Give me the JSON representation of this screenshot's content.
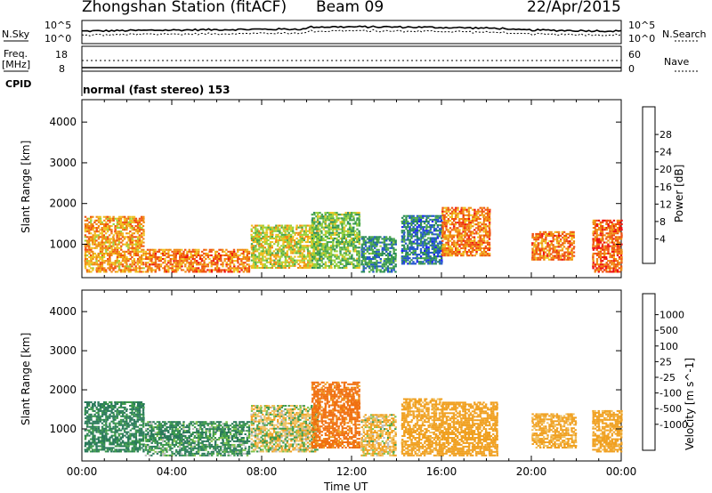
{
  "header": {
    "station": "Zhongshan Station (fitACF)",
    "beam": "Beam 09",
    "date": "22/Apr/2015"
  },
  "top_panel": {
    "left_label": "N.Sky",
    "left_ticks": [
      "10^5",
      "10^0"
    ],
    "right_ticks": [
      "10^5",
      "10^0"
    ],
    "right_label": "N.Search"
  },
  "freq_panel": {
    "left_label_1": "Freq.",
    "left_label_2": "[MHz]",
    "left_ticks": [
      "18",
      "8"
    ],
    "right_ticks": [
      "60",
      "0"
    ],
    "right_label": "Nave"
  },
  "cpid_panel": {
    "label": "CPID",
    "mode": "normal (fast stereo) 153"
  },
  "chart_data": [
    {
      "type": "heatmap",
      "quantity": "Power",
      "ylabel": "Slant Range [km]",
      "yticks": [
        "1000",
        "2000",
        "3000",
        "4000"
      ],
      "ylim": [
        180,
        4550
      ],
      "xlim": [
        0,
        24
      ],
      "colorbar_label": "Power [dB]",
      "colorbar_ticks": [
        "4",
        "8",
        "12",
        "16",
        "20",
        "24",
        "28"
      ],
      "colorbar_colors": [
        "#1a1aff",
        "#2255cc",
        "#2a8a5a",
        "#4aa84a",
        "#9ad23a",
        "#f0c020",
        "#f08a10",
        "#f05010",
        "#ee1010"
      ],
      "regions": [
        {
          "x": [
            0.1,
            2.8
          ],
          "y": [
            300,
            1700
          ],
          "value": 22
        },
        {
          "x": [
            2.8,
            7.5
          ],
          "y": [
            300,
            900
          ],
          "value": 24
        },
        {
          "x": [
            7.5,
            10.5
          ],
          "y": [
            400,
            1500
          ],
          "value": 18
        },
        {
          "x": [
            10.2,
            12.4
          ],
          "y": [
            400,
            1800
          ],
          "value": 14
        },
        {
          "x": [
            12.4,
            14.0
          ],
          "y": [
            300,
            1200
          ],
          "value": 10
        },
        {
          "x": [
            14.2,
            16.0
          ],
          "y": [
            500,
            1700
          ],
          "value": 8
        },
        {
          "x": [
            16.0,
            18.2
          ],
          "y": [
            700,
            1900
          ],
          "value": 24
        },
        {
          "x": [
            20.0,
            21.9
          ],
          "y": [
            600,
            1300
          ],
          "value": 24
        },
        {
          "x": [
            22.7,
            24.0
          ],
          "y": [
            300,
            1600
          ],
          "value": 26
        }
      ]
    },
    {
      "type": "heatmap",
      "quantity": "Velocity",
      "ylabel": "Slant Range [km]",
      "yticks": [
        "1000",
        "2000",
        "3000",
        "4000"
      ],
      "ylim": [
        180,
        4550
      ],
      "xlim": [
        0,
        24
      ],
      "xticks": [
        "00:00",
        "04:00",
        "08:00",
        "12:00",
        "16:00",
        "20:00",
        "00:00"
      ],
      "xlabel": "Time UT",
      "colorbar_label": "Velocity [m s^-1]",
      "colorbar_ticks": [
        "1000",
        "500",
        "100",
        "25",
        "-25",
        "-100",
        "-500",
        "-1000"
      ],
      "colorbar_colors": [
        "#1a2a9a",
        "#2255cc",
        "#2a7a5a",
        "#3c9a4a",
        "#7ec24a",
        "#bcbcbc",
        "#f0c060",
        "#f0a020",
        "#f07010",
        "#ee1010"
      ],
      "regions": [
        {
          "x": [
            0.1,
            2.8
          ],
          "y": [
            400,
            1700
          ],
          "value": 150
        },
        {
          "x": [
            2.8,
            7.5
          ],
          "y": [
            300,
            1200
          ],
          "value": 100
        },
        {
          "x": [
            7.5,
            10.5
          ],
          "y": [
            400,
            1600
          ],
          "value": -25
        },
        {
          "x": [
            10.2,
            12.4
          ],
          "y": [
            500,
            2200
          ],
          "value": -600
        },
        {
          "x": [
            12.4,
            14.0
          ],
          "y": [
            300,
            1400
          ],
          "value": -80
        },
        {
          "x": [
            14.2,
            16.0
          ],
          "y": [
            300,
            1800
          ],
          "value": -200
        },
        {
          "x": [
            16.0,
            18.5
          ],
          "y": [
            300,
            1700
          ],
          "value": -300
        },
        {
          "x": [
            20.0,
            22.0
          ],
          "y": [
            500,
            1400
          ],
          "value": -150
        },
        {
          "x": [
            22.7,
            24.0
          ],
          "y": [
            400,
            1500
          ],
          "value": -200
        }
      ]
    }
  ]
}
